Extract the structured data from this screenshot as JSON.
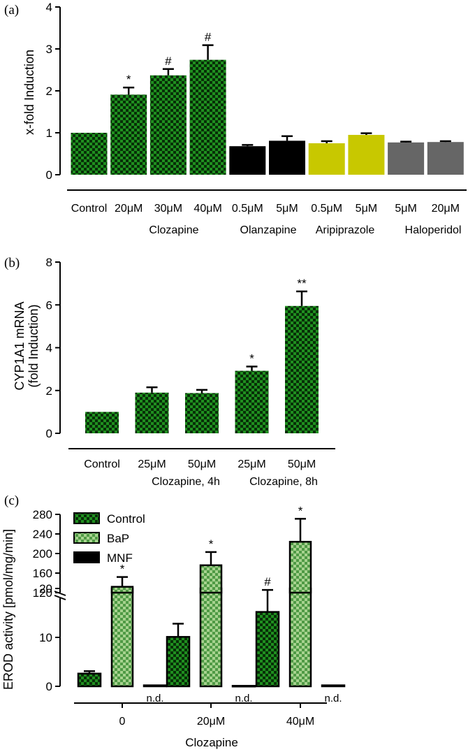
{
  "colors": {
    "green": "#1e8a1e",
    "dark_green": "#0b3d0b",
    "light_green": "#7fbf6a",
    "black": "#000000",
    "olive": "#c8c800",
    "gray": "#666666"
  },
  "chart_data": [
    {
      "panel_label": "(a)",
      "type": "bar",
      "ylabel": "x-fold Induction",
      "ylim": [
        0,
        4
      ],
      "yticks": [
        "0",
        "1",
        "2",
        "3",
        "4"
      ],
      "categories": [
        "Control",
        "20μM",
        "30μM",
        "40μM",
        "0.5μM",
        "5μM",
        "0.5μM",
        "5μM",
        "5μM",
        "20μM"
      ],
      "values": [
        1.0,
        1.91,
        2.37,
        2.74,
        0.68,
        0.81,
        0.75,
        0.95,
        0.77,
        0.78
      ],
      "errors": [
        0,
        0.17,
        0.15,
        0.35,
        0.03,
        0.11,
        0.05,
        0.04,
        0.02,
        0.02
      ],
      "annotations": [
        "",
        "*",
        "#",
        "#",
        "",
        "",
        "",
        "",
        "",
        ""
      ],
      "groups": [
        {
          "label": "Clozapine",
          "color_key": "green"
        },
        {
          "label": "Olanzapine",
          "color_key": "black"
        },
        {
          "label": "Aripiprazole",
          "color_key": "olive"
        },
        {
          "label": "Haloperidol",
          "color_key": "gray"
        }
      ]
    },
    {
      "panel_label": "(b)",
      "type": "bar",
      "ylabel": "CYP1A1 mRNA",
      "ylabel2": "(fold Induction)",
      "ylim": [
        0,
        8
      ],
      "yticks": [
        "0",
        "2",
        "4",
        "6",
        "8"
      ],
      "categories": [
        "Control",
        "25μM",
        "50μM",
        "25μM",
        "50μM"
      ],
      "values": [
        1.0,
        1.9,
        1.88,
        2.92,
        5.95
      ],
      "errors": [
        0,
        0.25,
        0.15,
        0.2,
        0.68
      ],
      "annotations": [
        "",
        "",
        "",
        "*",
        "**"
      ],
      "groups": [
        {
          "label": "Clozapine, 4h"
        },
        {
          "label": "Clozapine, 8h"
        }
      ]
    },
    {
      "panel_label": "(c)",
      "type": "bar",
      "ylabel": "EROD activity [pmol/mg/min]",
      "upper_ylim": [
        120,
        280
      ],
      "upper_yticks": [
        "120",
        "160",
        "200",
        "240",
        "280"
      ],
      "lower_ylim": [
        0,
        20
      ],
      "lower_yticks": [
        "0",
        "10",
        "20"
      ],
      "xlabel": "Clozapine",
      "categories": [
        "0",
        "20μM",
        "40μM"
      ],
      "series": [
        {
          "name": "Control",
          "values": [
            2.6,
            10.1,
            15.2
          ],
          "errors": [
            0.5,
            2.7,
            4.5
          ],
          "annotations": [
            "",
            "",
            "#"
          ]
        },
        {
          "name": "BaP",
          "values": [
            132,
            176,
            224
          ],
          "errors": [
            20,
            27,
            47
          ],
          "annotations": [
            "*",
            "*",
            "*"
          ]
        },
        {
          "name": "MNF",
          "values": [
            0.2,
            0.1,
            0.2
          ],
          "errors": [
            0,
            0,
            0
          ],
          "annotations": [
            "",
            "",
            ""
          ],
          "nd_label": "n.d."
        }
      ]
    }
  ]
}
